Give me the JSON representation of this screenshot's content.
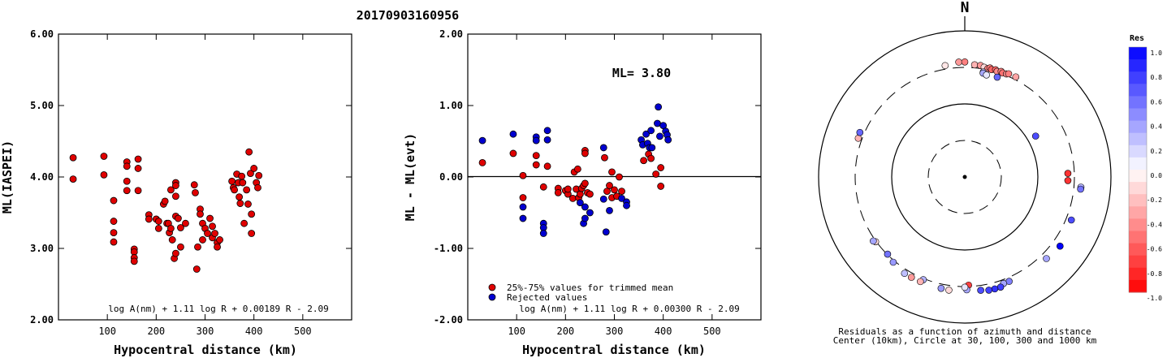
{
  "title": "20170903160956",
  "chart_data": [
    {
      "type": "scatter",
      "ylabel": "ML(IASPEI)",
      "xlabel": "Hypocentral distance (km)",
      "formula": "log A(nm) + 1.11 log R + 0.00189 R - 2.09",
      "xlim": [
        0,
        600
      ],
      "ylim": [
        2.0,
        6.0
      ],
      "x_ticks": [
        "100",
        "200",
        "300",
        "400",
        "500"
      ],
      "x_tick_values": [
        100,
        200,
        300,
        400,
        500
      ],
      "y_ticks": [
        "2.00",
        "3.00",
        "4.00",
        "5.00",
        "6.00"
      ],
      "y_tick_values": [
        2,
        3,
        4,
        5,
        6
      ],
      "points": [
        [
          30,
          4.27
        ],
        [
          30,
          3.97
        ],
        [
          93,
          4.29
        ],
        [
          93,
          4.03
        ],
        [
          113,
          3.67
        ],
        [
          113,
          3.38
        ],
        [
          113,
          3.22
        ],
        [
          113,
          3.09
        ],
        [
          140,
          4.21
        ],
        [
          140,
          4.15
        ],
        [
          140,
          3.94
        ],
        [
          140,
          3.81
        ],
        [
          155,
          2.99
        ],
        [
          155,
          2.95
        ],
        [
          155,
          2.87
        ],
        [
          155,
          2.82
        ],
        [
          163,
          4.25
        ],
        [
          163,
          4.12
        ],
        [
          163,
          3.81
        ],
        [
          185,
          3.47
        ],
        [
          185,
          3.41
        ],
        [
          200,
          3.41
        ],
        [
          205,
          3.38
        ],
        [
          205,
          3.28
        ],
        [
          215,
          3.62
        ],
        [
          218,
          3.66
        ],
        [
          222,
          3.35
        ],
        [
          225,
          3.35
        ],
        [
          227,
          3.22
        ],
        [
          230,
          3.82
        ],
        [
          230,
          3.28
        ],
        [
          233,
          3.12
        ],
        [
          237,
          2.86
        ],
        [
          240,
          3.92
        ],
        [
          240,
          3.88
        ],
        [
          240,
          3.73
        ],
        [
          240,
          3.45
        ],
        [
          240,
          2.93
        ],
        [
          245,
          3.42
        ],
        [
          250,
          3.29
        ],
        [
          250,
          3.02
        ],
        [
          260,
          3.35
        ],
        [
          278,
          3.89
        ],
        [
          280,
          3.78
        ],
        [
          283,
          2.71
        ],
        [
          285,
          3.02
        ],
        [
          290,
          3.55
        ],
        [
          290,
          3.48
        ],
        [
          295,
          3.35
        ],
        [
          295,
          3.12
        ],
        [
          300,
          3.28
        ],
        [
          305,
          3.21
        ],
        [
          310,
          3.42
        ],
        [
          315,
          3.31
        ],
        [
          315,
          3.15
        ],
        [
          320,
          3.21
        ],
        [
          325,
          3.08
        ],
        [
          325,
          3.02
        ],
        [
          330,
          3.12
        ],
        [
          355,
          3.94
        ],
        [
          358,
          3.85
        ],
        [
          360,
          3.82
        ],
        [
          365,
          4.04
        ],
        [
          368,
          3.92
        ],
        [
          370,
          3.72
        ],
        [
          372,
          3.63
        ],
        [
          375,
          4.01
        ],
        [
          377,
          3.92
        ],
        [
          380,
          3.35
        ],
        [
          385,
          3.82
        ],
        [
          388,
          3.62
        ],
        [
          390,
          4.35
        ],
        [
          393,
          4.05
        ],
        [
          395,
          3.48
        ],
        [
          395,
          3.21
        ],
        [
          400,
          4.12
        ],
        [
          405,
          3.92
        ],
        [
          408,
          3.85
        ],
        [
          410,
          4.02
        ]
      ]
    },
    {
      "type": "scatter",
      "ylabel": "ML - ML(evt)",
      "xlabel": "Hypocentral distance (km)",
      "annotation": "ML= 3.80",
      "formula": "log A(nm) + 1.11 log R + 0.00300 R - 2.09",
      "xlim": [
        0,
        600
      ],
      "ylim": [
        -2.0,
        2.0
      ],
      "x_ticks": [
        "100",
        "200",
        "300",
        "400",
        "500"
      ],
      "x_tick_values": [
        100,
        200,
        300,
        400,
        500
      ],
      "y_ticks": [
        "-2.00",
        "-1.00",
        "0.00",
        "1.00",
        "2.00"
      ],
      "y_tick_values": [
        -2,
        -1,
        0,
        1,
        2
      ],
      "reference_line": 0,
      "series": [
        {
          "name": "25%-75% values for trimmed mean",
          "color": "#e00000",
          "points": [
            [
              30,
              0.2
            ],
            [
              93,
              0.33
            ],
            [
              113,
              0.02
            ],
            [
              113,
              -0.29
            ],
            [
              140,
              0.3
            ],
            [
              140,
              0.17
            ],
            [
              155,
              -0.14
            ],
            [
              163,
              0.15
            ],
            [
              185,
              -0.16
            ],
            [
              185,
              -0.22
            ],
            [
              200,
              -0.19
            ],
            [
              205,
              -0.24
            ],
            [
              205,
              -0.17
            ],
            [
              215,
              -0.3
            ],
            [
              218,
              0.07
            ],
            [
              222,
              -0.17
            ],
            [
              225,
              0.11
            ],
            [
              227,
              -0.29
            ],
            [
              230,
              -0.24
            ],
            [
              233,
              -0.16
            ],
            [
              237,
              -0.12
            ],
            [
              240,
              0.37
            ],
            [
              240,
              0.33
            ],
            [
              240,
              -0.09
            ],
            [
              245,
              -0.22
            ],
            [
              250,
              -0.24
            ],
            [
              280,
              0.27
            ],
            [
              285,
              -0.2
            ],
            [
              290,
              -0.12
            ],
            [
              295,
              0.07
            ],
            [
              295,
              -0.29
            ],
            [
              300,
              -0.18
            ],
            [
              305,
              -0.27
            ],
            [
              310,
              0.0
            ],
            [
              315,
              -0.2
            ],
            [
              360,
              0.23
            ],
            [
              370,
              0.32
            ],
            [
              375,
              0.26
            ],
            [
              385,
              0.04
            ],
            [
              395,
              0.13
            ],
            [
              395,
              -0.13
            ]
          ]
        },
        {
          "name": "Rejected values",
          "color": "#0000d0",
          "points": [
            [
              30,
              0.51
            ],
            [
              93,
              0.6
            ],
            [
              113,
              -0.42
            ],
            [
              113,
              -0.58
            ],
            [
              140,
              0.56
            ],
            [
              140,
              0.51
            ],
            [
              155,
              -0.65
            ],
            [
              155,
              -0.71
            ],
            [
              155,
              -0.79
            ],
            [
              163,
              0.65
            ],
            [
              163,
              0.52
            ],
            [
              230,
              -0.36
            ],
            [
              237,
              -0.65
            ],
            [
              240,
              -0.42
            ],
            [
              240,
              -0.58
            ],
            [
              250,
              -0.5
            ],
            [
              278,
              0.41
            ],
            [
              278,
              -0.31
            ],
            [
              283,
              -0.77
            ],
            [
              290,
              -0.47
            ],
            [
              315,
              -0.3
            ],
            [
              325,
              -0.35
            ],
            [
              325,
              -0.4
            ],
            [
              355,
              0.52
            ],
            [
              358,
              0.45
            ],
            [
              365,
              0.6
            ],
            [
              368,
              0.47
            ],
            [
              372,
              0.41
            ],
            [
              375,
              0.65
            ],
            [
              377,
              0.41
            ],
            [
              388,
              0.75
            ],
            [
              390,
              0.98
            ],
            [
              393,
              0.57
            ],
            [
              400,
              0.72
            ],
            [
              405,
              0.64
            ],
            [
              408,
              0.59
            ],
            [
              410,
              0.52
            ]
          ]
        }
      ]
    },
    {
      "type": "polar_scatter",
      "north_label": "N",
      "caption_line1": "Residuals as a function of azimuth and distance",
      "caption_line2": "Center (10km), Circle at 30, 100, 300 and 1000 km",
      "colorbar_title": "Res",
      "colorbar_ticks": [
        "1.0",
        "0.8",
        "0.6",
        "0.4",
        "0.2",
        "0.0",
        "-0.2",
        "-0.4",
        "-0.6",
        "-0.8",
        "-1.0"
      ],
      "colorbar_tick_values": [
        1.0,
        0.8,
        0.6,
        0.4,
        0.2,
        0.0,
        -0.2,
        -0.4,
        -0.6,
        -0.8,
        -1.0
      ],
      "rings_km": [
        30,
        100,
        300,
        1000
      ],
      "stations": [
        {
          "az": 350,
          "dist": 337,
          "res": -0.1
        },
        {
          "az": 357,
          "dist": 359,
          "res": -0.4
        },
        {
          "az": 360,
          "dist": 359,
          "res": -0.5
        },
        {
          "az": 5,
          "dist": 331,
          "res": -0.3
        },
        {
          "az": 8,
          "dist": 331,
          "res": -0.4
        },
        {
          "az": 10,
          "dist": 319,
          "res": -0.15
        },
        {
          "az": 12,
          "dist": 313,
          "res": -0.5
        },
        {
          "az": 13,
          "dist": 324,
          "res": -0.5
        },
        {
          "az": 14,
          "dist": 311,
          "res": -0.6
        },
        {
          "az": 16,
          "dist": 320,
          "res": -0.6
        },
        {
          "az": 17,
          "dist": 308,
          "res": -0.45
        },
        {
          "az": 19,
          "dist": 321,
          "res": -0.5
        },
        {
          "az": 20,
          "dist": 311,
          "res": -0.55
        },
        {
          "az": 22,
          "dist": 316,
          "res": -0.45
        },
        {
          "az": 23,
          "dist": 326,
          "res": -0.5
        },
        {
          "az": 27,
          "dist": 328,
          "res": -0.35
        },
        {
          "az": 10,
          "dist": 274,
          "res": 0.2
        },
        {
          "az": 10,
          "dist": 265,
          "res": 0.35
        },
        {
          "az": 12,
          "dist": 256,
          "res": 0.1
        },
        {
          "az": 18,
          "dist": 261,
          "res": 0.6
        },
        {
          "az": 60,
          "dist": 130,
          "res": 0.7
        },
        {
          "az": 88,
          "dist": 247,
          "res": -0.8
        },
        {
          "az": 92,
          "dist": 247,
          "res": -0.8
        },
        {
          "az": 95,
          "dist": 377,
          "res": 0.3
        },
        {
          "az": 96,
          "dist": 376,
          "res": 0.55
        },
        {
          "az": 112,
          "dist": 357,
          "res": 0.7
        },
        {
          "az": 126,
          "dist": 392,
          "res": 1.0
        },
        {
          "az": 135,
          "dist": 363,
          "res": 0.35
        },
        {
          "az": 157,
          "dist": 340,
          "res": 0.5
        },
        {
          "az": 160,
          "dist": 339,
          "res": 0.35
        },
        {
          "az": 162,
          "dist": 368,
          "res": 0.75
        },
        {
          "az": 165,
          "dist": 369,
          "res": 0.8
        },
        {
          "az": 168,
          "dist": 367,
          "res": 0.75
        },
        {
          "az": 172,
          "dist": 352,
          "res": 0.7
        },
        {
          "az": 178,
          "dist": 288,
          "res": -0.75
        },
        {
          "az": 179,
          "dist": 334,
          "res": 0.35
        },
        {
          "az": 180,
          "dist": 307,
          "res": 0.1
        },
        {
          "az": 188,
          "dist": 350,
          "res": -0.15
        },
        {
          "az": 192,
          "dist": 345,
          "res": 0.4
        },
        {
          "az": 202,
          "dist": 312,
          "res": 0.3
        },
        {
          "az": 203,
          "dist": 343,
          "res": -0.3
        },
        {
          "az": 208,
          "dist": 343,
          "res": -0.4
        },
        {
          "az": 212,
          "dist": 343,
          "res": 0.25
        },
        {
          "az": 220,
          "dist": 317,
          "res": 0.4
        },
        {
          "az": 225,
          "dist": 296,
          "res": 0.55
        },
        {
          "az": 234,
          "dist": 306,
          "res": -0.15
        },
        {
          "az": 235,
          "dist": 321,
          "res": 0.35
        },
        {
          "az": 290,
          "dist": 339,
          "res": -0.3
        },
        {
          "az": 293,
          "dist": 346,
          "res": 0.6
        }
      ]
    }
  ]
}
